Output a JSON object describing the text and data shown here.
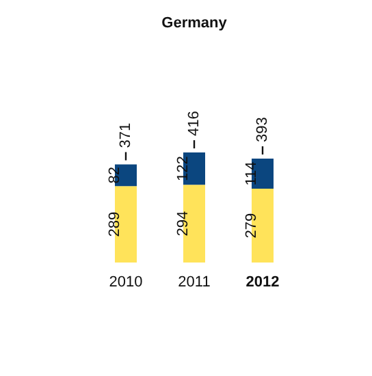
{
  "chart_data": {
    "type": "bar",
    "title": "Germany",
    "categories": [
      "2010",
      "2011",
      "2012"
    ],
    "stacked": true,
    "data_labels": true,
    "totals": [
      "371",
      "416",
      "393"
    ],
    "series": [
      {
        "color": "#ffe35a",
        "values": [
          289,
          294,
          279
        ]
      },
      {
        "color": "#0b467f",
        "values": [
          82,
          122,
          114
        ]
      }
    ]
  }
}
